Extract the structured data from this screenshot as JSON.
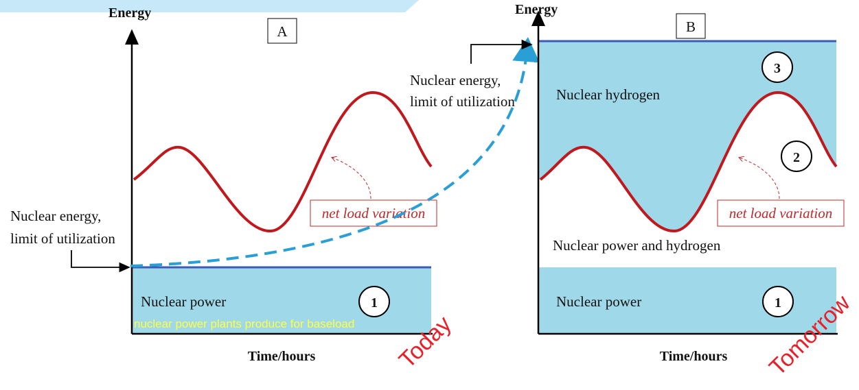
{
  "panel_a": {
    "y_axis_label": "Energy",
    "label": "A",
    "limit_label": [
      "Nuclear energy,",
      "limit of utilization"
    ],
    "curve_label": "net load variation",
    "region_label": "Nuclear power",
    "region_number": "1",
    "caption": "nuclear power plants produce for baseload",
    "x_axis_label": "Time/hours",
    "stamp": "Today"
  },
  "panel_b": {
    "y_axis_label": "Energy",
    "label": "B",
    "limit_label": [
      "Nuclear energy,",
      "limit of utilization"
    ],
    "curve_label": "net load variation",
    "upper_region_label": "Nuclear hydrogen",
    "upper_region_number": "3",
    "curve_number": "2",
    "middle_region_label": "Nuclear power and hydrogen",
    "region_label": "Nuclear power",
    "region_number": "1",
    "x_axis_label": "Time/hours",
    "stamp": "Tomorrow"
  }
}
